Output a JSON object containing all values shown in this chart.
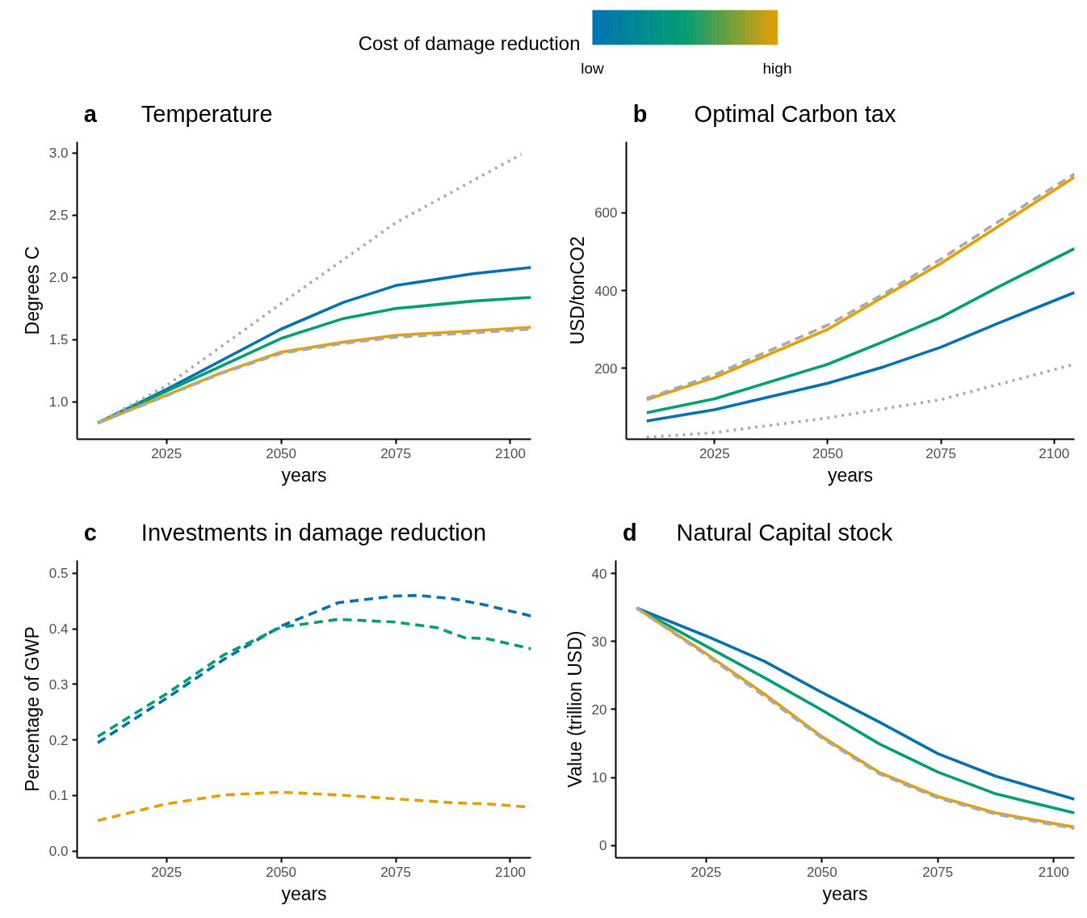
{
  "chart_data": [
    {
      "type": "line",
      "title": "Temperature",
      "annotations": [
        "a"
      ],
      "xlabel": "years",
      "ylabel": "Degrees C",
      "xlim": [
        2005.5,
        2104.5
      ],
      "ylim": [
        0.7,
        3.09
      ],
      "xticks": [
        2025,
        2050,
        2075,
        2100
      ],
      "yticks": [
        {
          "value": 1,
          "label": "1.0"
        },
        1.5,
        {
          "value": 2,
          "label": "2.0"
        },
        2.5,
        {
          "value": 3,
          "label": "3.0"
        }
      ],
      "grid": false,
      "clabel": "Cost of damage reduction",
      "clim": [
        0,
        1
      ],
      "cticks": [
        {
          "value": 0,
          "label": "low"
        },
        {
          "value": 1,
          "label": "high"
        }
      ],
      "series": [
        {
          "color": "#0072b2",
          "line_style": "solid",
          "x": [
            2010,
            2025,
            2050,
            2063.6,
            2075,
            2091.8,
            2104.5
          ],
          "values": [
            0.83,
            1.1,
            1.585,
            1.8,
            1.935,
            2.03,
            2.08
          ]
        },
        {
          "color": "#009e73",
          "line_style": "solid",
          "x": [
            2010,
            2025,
            2050,
            2063.6,
            2075,
            2091.8,
            2104.5
          ],
          "values": [
            0.83,
            1.085,
            1.51,
            1.67,
            1.75,
            1.81,
            1.84
          ]
        },
        {
          "color": "#e69f00",
          "line_style": "solid",
          "x": [
            2010,
            2025,
            2037,
            2050,
            2063.6,
            2075,
            2091.8,
            2104.5
          ],
          "values": [
            0.83,
            1.055,
            1.235,
            1.4,
            1.48,
            1.535,
            1.57,
            1.6
          ]
        },
        {
          "color": "#a9a9a9",
          "line_style": "dashed",
          "x": [
            2010,
            2025,
            2037,
            2050,
            2063.6,
            2075,
            2091.8,
            2104.5
          ],
          "values": [
            0.83,
            1.05,
            1.23,
            1.39,
            1.47,
            1.52,
            1.555,
            1.585
          ]
        },
        {
          "color": "#a9a9a9",
          "line_style": "dotted",
          "x": [
            2010,
            2025,
            2050,
            2075,
            2102.4
          ],
          "values": [
            0.83,
            1.13,
            1.79,
            2.44,
            2.99
          ]
        }
      ]
    },
    {
      "type": "line",
      "title": "Optimal Carbon tax",
      "annotations": [
        "b"
      ],
      "xlabel": "years",
      "ylabel": "USD/tonCO2",
      "xlim": [
        2005.5,
        2104.5
      ],
      "ylim": [
        17,
        783
      ],
      "xticks": [
        2025,
        2050,
        2075,
        2100
      ],
      "yticks": [
        200,
        400,
        600
      ],
      "grid": false,
      "x": [
        2010,
        2025,
        2050,
        2062.5,
        2075,
        2087.5,
        2104.5
      ],
      "series": [
        {
          "color": "#0072b2",
          "line_style": "solid",
          "values": [
            64,
            93,
            161,
            204,
            254,
            315,
            395
          ]
        },
        {
          "color": "#009e73",
          "line_style": "solid",
          "values": [
            85,
            121,
            210,
            269,
            331,
            408,
            508
          ]
        },
        {
          "color": "#e69f00",
          "line_style": "solid",
          "values": [
            119,
            176,
            300,
            385,
            470,
            564,
            692
          ]
        },
        {
          "color": "#a9a9a9",
          "line_style": "dashed",
          "values": [
            122,
            183,
            311,
            392,
            481,
            576,
            700
          ]
        },
        {
          "color": "#a9a9a9",
          "line_style": "dotted",
          "x": [
            2010,
            2025,
            2050,
            2075,
            2104.5
          ],
          "values": [
            22,
            34,
            72,
            119,
            210
          ]
        }
      ]
    },
    {
      "type": "line",
      "title": "Investments in damage reduction",
      "annotations": [
        "c"
      ],
      "xlabel": "years",
      "ylabel": "Percentage of GWP",
      "xlim": [
        2005.5,
        2104.5
      ],
      "ylim": [
        -0.012,
        0.523
      ],
      "xticks": [
        2025,
        2050,
        2075,
        2100
      ],
      "yticks": [
        {
          "value": 0,
          "label": "0.0"
        },
        0.1,
        0.2,
        0.3,
        0.4,
        0.5
      ],
      "grid": false,
      "series": [
        {
          "color": "#0072b2",
          "line_style": "dashed",
          "x": [
            2010,
            2025,
            2037.5,
            2050,
            2062.5,
            2075,
            2080,
            2087.5,
            2095,
            2104.5
          ],
          "values": [
            0.195,
            0.275,
            0.345,
            0.405,
            0.447,
            0.459,
            0.46,
            0.454,
            0.442,
            0.423
          ]
        },
        {
          "color": "#009e73",
          "line_style": "dashed",
          "x": [
            2010,
            2025,
            2037.5,
            2050,
            2062.5,
            2075,
            2084,
            2090,
            2095,
            2104.5
          ],
          "values": [
            0.206,
            0.283,
            0.353,
            0.403,
            0.417,
            0.412,
            0.402,
            0.384,
            0.382,
            0.364
          ]
        },
        {
          "color": "#e69f00",
          "line_style": "dashed",
          "x": [
            2010,
            2025,
            2037.5,
            2050,
            2062.5,
            2075,
            2087.5,
            2095,
            2104.5
          ],
          "values": [
            0.055,
            0.085,
            0.101,
            0.106,
            0.101,
            0.094,
            0.087,
            0.085,
            0.079
          ]
        }
      ]
    },
    {
      "type": "line",
      "title": "Natural Capital stock",
      "annotations": [
        "d"
      ],
      "xlabel": "years",
      "ylabel": "Value (trillion USD)",
      "xlim": [
        2005.5,
        2104.5
      ],
      "ylim": [
        -1.8,
        41.9
      ],
      "xticks": [
        2025,
        2050,
        2075,
        2100
      ],
      "yticks": [
        0,
        10,
        20,
        30,
        40
      ],
      "grid": false,
      "x": [
        2010,
        2025,
        2037.5,
        2050,
        2062.5,
        2075,
        2087.5,
        2104.5
      ],
      "series": [
        {
          "color": "#0072b2",
          "line_style": "solid",
          "values": [
            34.9,
            30.8,
            27.1,
            22.5,
            18.1,
            13.5,
            10.2,
            6.8
          ]
        },
        {
          "color": "#009e73",
          "line_style": "solid",
          "values": [
            34.9,
            29.3,
            24.7,
            19.9,
            14.9,
            10.8,
            7.6,
            4.8
          ]
        },
        {
          "color": "#e69f00",
          "line_style": "solid",
          "values": [
            34.9,
            28.2,
            22.3,
            16.0,
            10.7,
            7.2,
            4.8,
            2.7
          ]
        },
        {
          "color": "#a9a9a9",
          "line_style": "dashed",
          "values": [
            34.9,
            28.0,
            22.0,
            15.8,
            10.5,
            7.0,
            4.6,
            2.5
          ]
        }
      ]
    }
  ]
}
